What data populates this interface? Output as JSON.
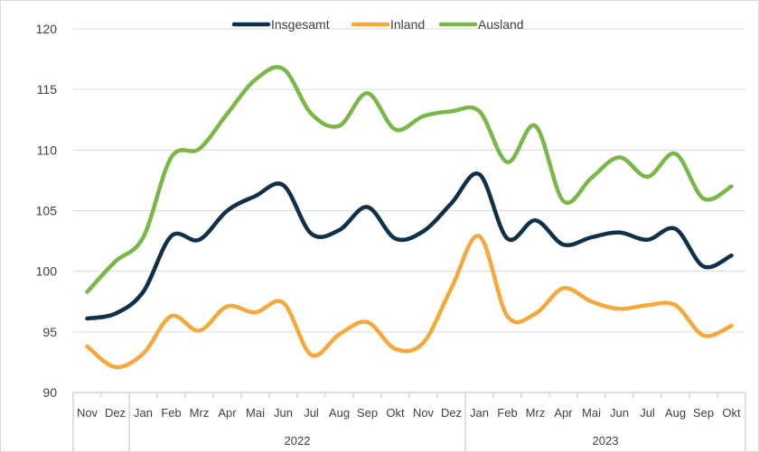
{
  "chart_data": {
    "type": "line",
    "title": "",
    "xlabel": "",
    "ylabel": "",
    "ylim": [
      90,
      120
    ],
    "yticks": [
      90,
      95,
      100,
      105,
      110,
      115,
      120
    ],
    "grid": "horizontal",
    "legend_position": "top",
    "categories": [
      "Nov",
      "Dez",
      "Jan",
      "Feb",
      "Mrz",
      "Apr",
      "Mai",
      "Jun",
      "Jul",
      "Aug",
      "Sep",
      "Okt",
      "Nov",
      "Dez",
      "Jan",
      "Feb",
      "Mrz",
      "Apr",
      "Mai",
      "Jun",
      "Jul",
      "Aug",
      "Sep",
      "Okt"
    ],
    "year_groups": [
      {
        "label": "",
        "start": 0,
        "end": 1
      },
      {
        "label": "2022",
        "start": 2,
        "end": 13
      },
      {
        "label": "2023",
        "start": 14,
        "end": 23
      }
    ],
    "series": [
      {
        "name": "Insgesamt",
        "color": "#0f3049",
        "values": [
          96.1,
          96.5,
          98.3,
          102.9,
          102.6,
          105.0,
          106.2,
          107.1,
          103.1,
          103.4,
          105.3,
          102.7,
          103.3,
          105.6,
          108.0,
          102.7,
          104.2,
          102.2,
          102.8,
          103.2,
          102.6,
          103.5,
          100.4,
          101.3
        ]
      },
      {
        "name": "Inland",
        "color": "#f3a93b",
        "values": [
          93.8,
          92.1,
          93.2,
          96.3,
          95.1,
          97.1,
          96.6,
          97.4,
          93.1,
          94.8,
          95.8,
          93.6,
          94.1,
          98.6,
          102.9,
          96.3,
          96.5,
          98.6,
          97.5,
          96.9,
          97.2,
          97.2,
          94.7,
          95.5
        ]
      },
      {
        "name": "Ausland",
        "color": "#7ab648",
        "values": [
          98.3,
          100.8,
          102.8,
          109.4,
          110.1,
          113.0,
          115.8,
          116.7,
          113.0,
          112.0,
          114.7,
          111.7,
          112.8,
          113.2,
          113.2,
          109.0,
          112.0,
          105.8,
          107.7,
          109.4,
          107.8,
          109.7,
          106.0,
          107.0
        ]
      }
    ]
  }
}
